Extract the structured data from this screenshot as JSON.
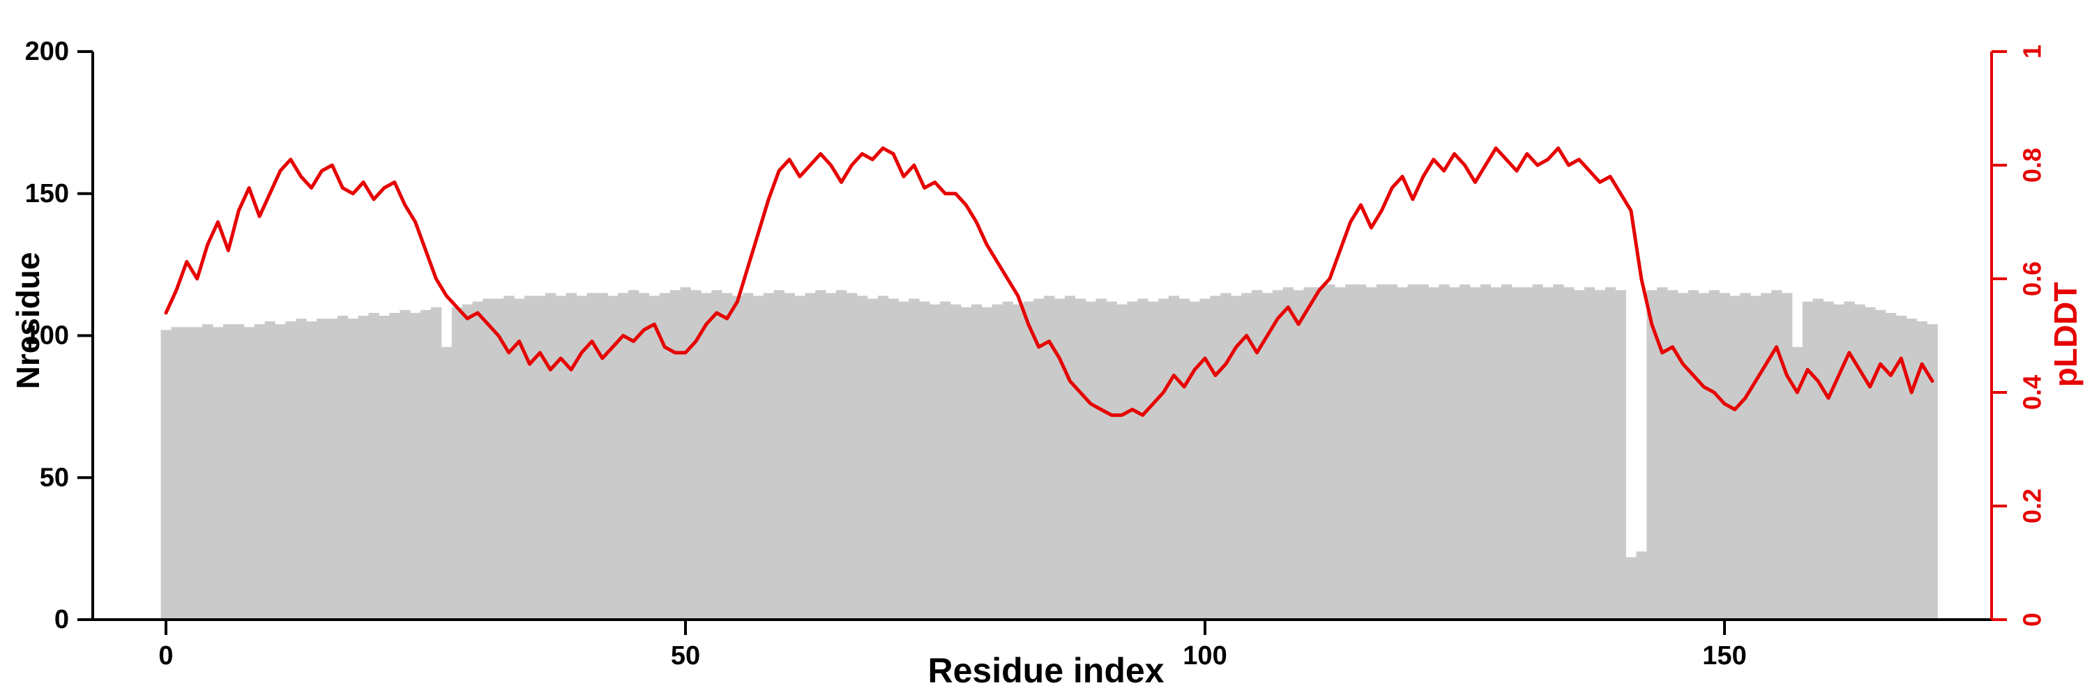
{
  "chart_data": {
    "type": "bar+line",
    "title": "",
    "axes": {
      "x": {
        "label": "Residue index",
        "range": [
          0,
          170
        ],
        "ticks": [
          0,
          50,
          100,
          150
        ]
      },
      "left": {
        "label": "Nresidue",
        "range": [
          0,
          200
        ],
        "ticks": [
          0,
          50,
          100,
          150,
          200
        ]
      },
      "right": {
        "label": "pLDDT",
        "range": [
          0,
          1
        ],
        "ticks": [
          0,
          0.2,
          0.4,
          0.6,
          0.8,
          1
        ]
      }
    },
    "colors": {
      "bar": "#cacaca",
      "line": "#e60000",
      "axis": "#000000",
      "right_axis": "#e60000"
    },
    "x_start": 0,
    "x_step": 1,
    "series": [
      {
        "name": "Nresidue",
        "type": "bar",
        "axis": "left",
        "values": [
          102,
          103,
          103,
          103,
          104,
          103,
          104,
          104,
          103,
          104,
          105,
          104,
          105,
          106,
          105,
          106,
          106,
          107,
          106,
          107,
          108,
          107,
          108,
          109,
          108,
          109,
          110,
          96,
          110,
          111,
          112,
          113,
          113,
          114,
          113,
          114,
          114,
          115,
          114,
          115,
          114,
          115,
          115,
          114,
          115,
          116,
          115,
          114,
          115,
          116,
          117,
          116,
          115,
          116,
          115,
          114,
          115,
          114,
          115,
          116,
          115,
          114,
          115,
          116,
          115,
          116,
          115,
          114,
          113,
          114,
          113,
          112,
          113,
          112,
          111,
          112,
          111,
          110,
          111,
          110,
          111,
          112,
          111,
          112,
          113,
          114,
          113,
          114,
          113,
          112,
          113,
          112,
          111,
          112,
          113,
          112,
          113,
          114,
          113,
          112,
          113,
          114,
          115,
          114,
          115,
          116,
          115,
          116,
          117,
          116,
          117,
          117,
          118,
          117,
          118,
          118,
          117,
          118,
          118,
          117,
          118,
          118,
          117,
          118,
          117,
          118,
          117,
          118,
          117,
          118,
          117,
          117,
          118,
          117,
          118,
          117,
          116,
          117,
          116,
          117,
          116,
          22,
          24,
          116,
          117,
          116,
          115,
          116,
          115,
          116,
          115,
          114,
          115,
          114,
          115,
          116,
          115,
          96,
          112,
          113,
          112,
          111,
          112,
          111,
          110,
          109,
          108,
          107,
          106,
          105,
          104
        ]
      },
      {
        "name": "pLDDT",
        "type": "line",
        "axis": "right",
        "values": [
          0.54,
          0.58,
          0.63,
          0.6,
          0.66,
          0.7,
          0.65,
          0.72,
          0.76,
          0.71,
          0.75,
          0.79,
          0.81,
          0.78,
          0.76,
          0.79,
          0.8,
          0.76,
          0.75,
          0.77,
          0.74,
          0.76,
          0.77,
          0.73,
          0.7,
          0.65,
          0.6,
          0.57,
          0.55,
          0.53,
          0.54,
          0.52,
          0.5,
          0.47,
          0.49,
          0.45,
          0.47,
          0.44,
          0.46,
          0.44,
          0.47,
          0.49,
          0.46,
          0.48,
          0.5,
          0.49,
          0.51,
          0.52,
          0.48,
          0.47,
          0.47,
          0.49,
          0.52,
          0.54,
          0.53,
          0.56,
          0.62,
          0.68,
          0.74,
          0.79,
          0.81,
          0.78,
          0.8,
          0.82,
          0.8,
          0.77,
          0.8,
          0.82,
          0.81,
          0.83,
          0.82,
          0.78,
          0.8,
          0.76,
          0.77,
          0.75,
          0.75,
          0.73,
          0.7,
          0.66,
          0.63,
          0.6,
          0.57,
          0.52,
          0.48,
          0.49,
          0.46,
          0.42,
          0.4,
          0.38,
          0.37,
          0.36,
          0.36,
          0.37,
          0.36,
          0.38,
          0.4,
          0.43,
          0.41,
          0.44,
          0.46,
          0.43,
          0.45,
          0.48,
          0.5,
          0.47,
          0.5,
          0.53,
          0.55,
          0.52,
          0.55,
          0.58,
          0.6,
          0.65,
          0.7,
          0.73,
          0.69,
          0.72,
          0.76,
          0.78,
          0.74,
          0.78,
          0.81,
          0.79,
          0.82,
          0.8,
          0.77,
          0.8,
          0.83,
          0.81,
          0.79,
          0.82,
          0.8,
          0.81,
          0.83,
          0.8,
          0.81,
          0.79,
          0.77,
          0.78,
          0.75,
          0.72,
          0.6,
          0.52,
          0.47,
          0.48,
          0.45,
          0.43,
          0.41,
          0.4,
          0.38,
          0.37,
          0.39,
          0.42,
          0.45,
          0.48,
          0.43,
          0.4,
          0.44,
          0.42,
          0.39,
          0.43,
          0.47,
          0.44,
          0.41,
          0.45,
          0.43,
          0.46,
          0.4,
          0.45,
          0.42
        ]
      }
    ]
  }
}
